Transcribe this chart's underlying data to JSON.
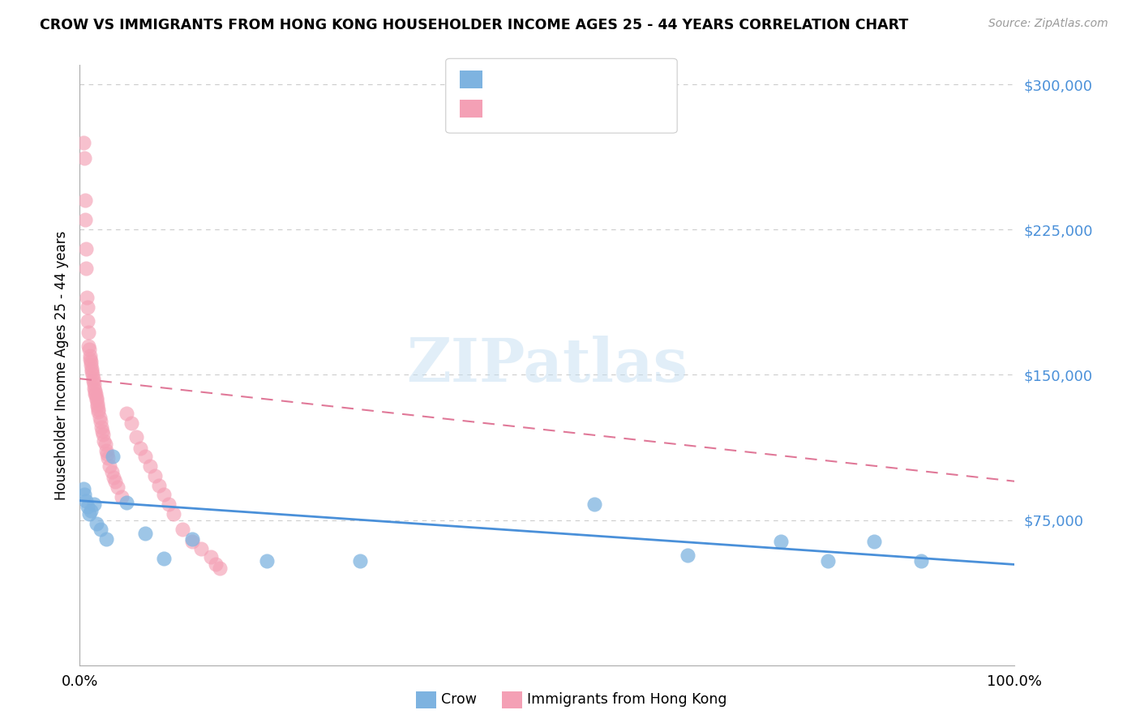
{
  "title": "CROW VS IMMIGRANTS FROM HONG KONG HOUSEHOLDER INCOME AGES 25 - 44 YEARS CORRELATION CHART",
  "source": "Source: ZipAtlas.com",
  "ylabel": "Householder Income Ages 25 - 44 years",
  "xlim": [
    0,
    100
  ],
  "ylim": [
    0,
    310000
  ],
  "color_crow": "#7eb3e0",
  "color_hk": "#f4a0b5",
  "color_crow_line": "#4a90d9",
  "color_hk_line": "#e07898",
  "background_color": "#ffffff",
  "crow_x": [
    0.4,
    0.5,
    0.7,
    0.8,
    1.0,
    1.2,
    1.5,
    1.8,
    2.2,
    2.8,
    3.5,
    5.0,
    7.0,
    9.0,
    12.0,
    20.0,
    30.0,
    55.0,
    65.0,
    75.0,
    80.0,
    85.0,
    90.0
  ],
  "crow_y": [
    91000,
    88000,
    85000,
    82000,
    78000,
    80000,
    83000,
    73000,
    70000,
    65000,
    108000,
    84000,
    68000,
    55000,
    65000,
    54000,
    54000,
    83000,
    57000,
    64000,
    54000,
    64000,
    54000
  ],
  "hk_x": [
    0.4,
    0.5,
    0.55,
    0.6,
    0.65,
    0.7,
    0.75,
    0.8,
    0.85,
    0.9,
    0.95,
    1.0,
    1.05,
    1.1,
    1.15,
    1.2,
    1.25,
    1.3,
    1.35,
    1.4,
    1.45,
    1.5,
    1.55,
    1.6,
    1.65,
    1.7,
    1.75,
    1.8,
    1.85,
    1.9,
    1.95,
    2.0,
    2.1,
    2.2,
    2.3,
    2.4,
    2.5,
    2.6,
    2.7,
    2.8,
    2.9,
    3.0,
    3.2,
    3.4,
    3.6,
    3.8,
    4.0,
    4.5,
    5.0,
    5.5,
    6.0,
    6.5,
    7.0,
    7.5,
    8.0,
    8.5,
    9.0,
    9.5,
    10.0,
    11.0,
    12.0,
    13.0,
    14.0,
    14.5,
    15.0
  ],
  "hk_y": [
    270000,
    262000,
    240000,
    230000,
    215000,
    205000,
    190000,
    185000,
    178000,
    172000,
    165000,
    163000,
    160000,
    158000,
    157000,
    155000,
    153000,
    152000,
    150000,
    148000,
    147000,
    145000,
    143000,
    142000,
    140000,
    140000,
    138000,
    137000,
    135000,
    134000,
    132000,
    131000,
    128000,
    126000,
    123000,
    121000,
    119000,
    116000,
    114000,
    111000,
    109000,
    107000,
    103000,
    100000,
    97000,
    95000,
    92000,
    87000,
    130000,
    125000,
    118000,
    112000,
    108000,
    103000,
    98000,
    93000,
    88000,
    83000,
    78000,
    70000,
    64000,
    60000,
    56000,
    52000,
    50000
  ],
  "hk_trendline_x": [
    0.0,
    100.0
  ],
  "hk_trendline_y": [
    148000,
    95000
  ],
  "crow_trendline_x": [
    0.0,
    100.0
  ],
  "crow_trendline_y": [
    85000,
    52000
  ]
}
